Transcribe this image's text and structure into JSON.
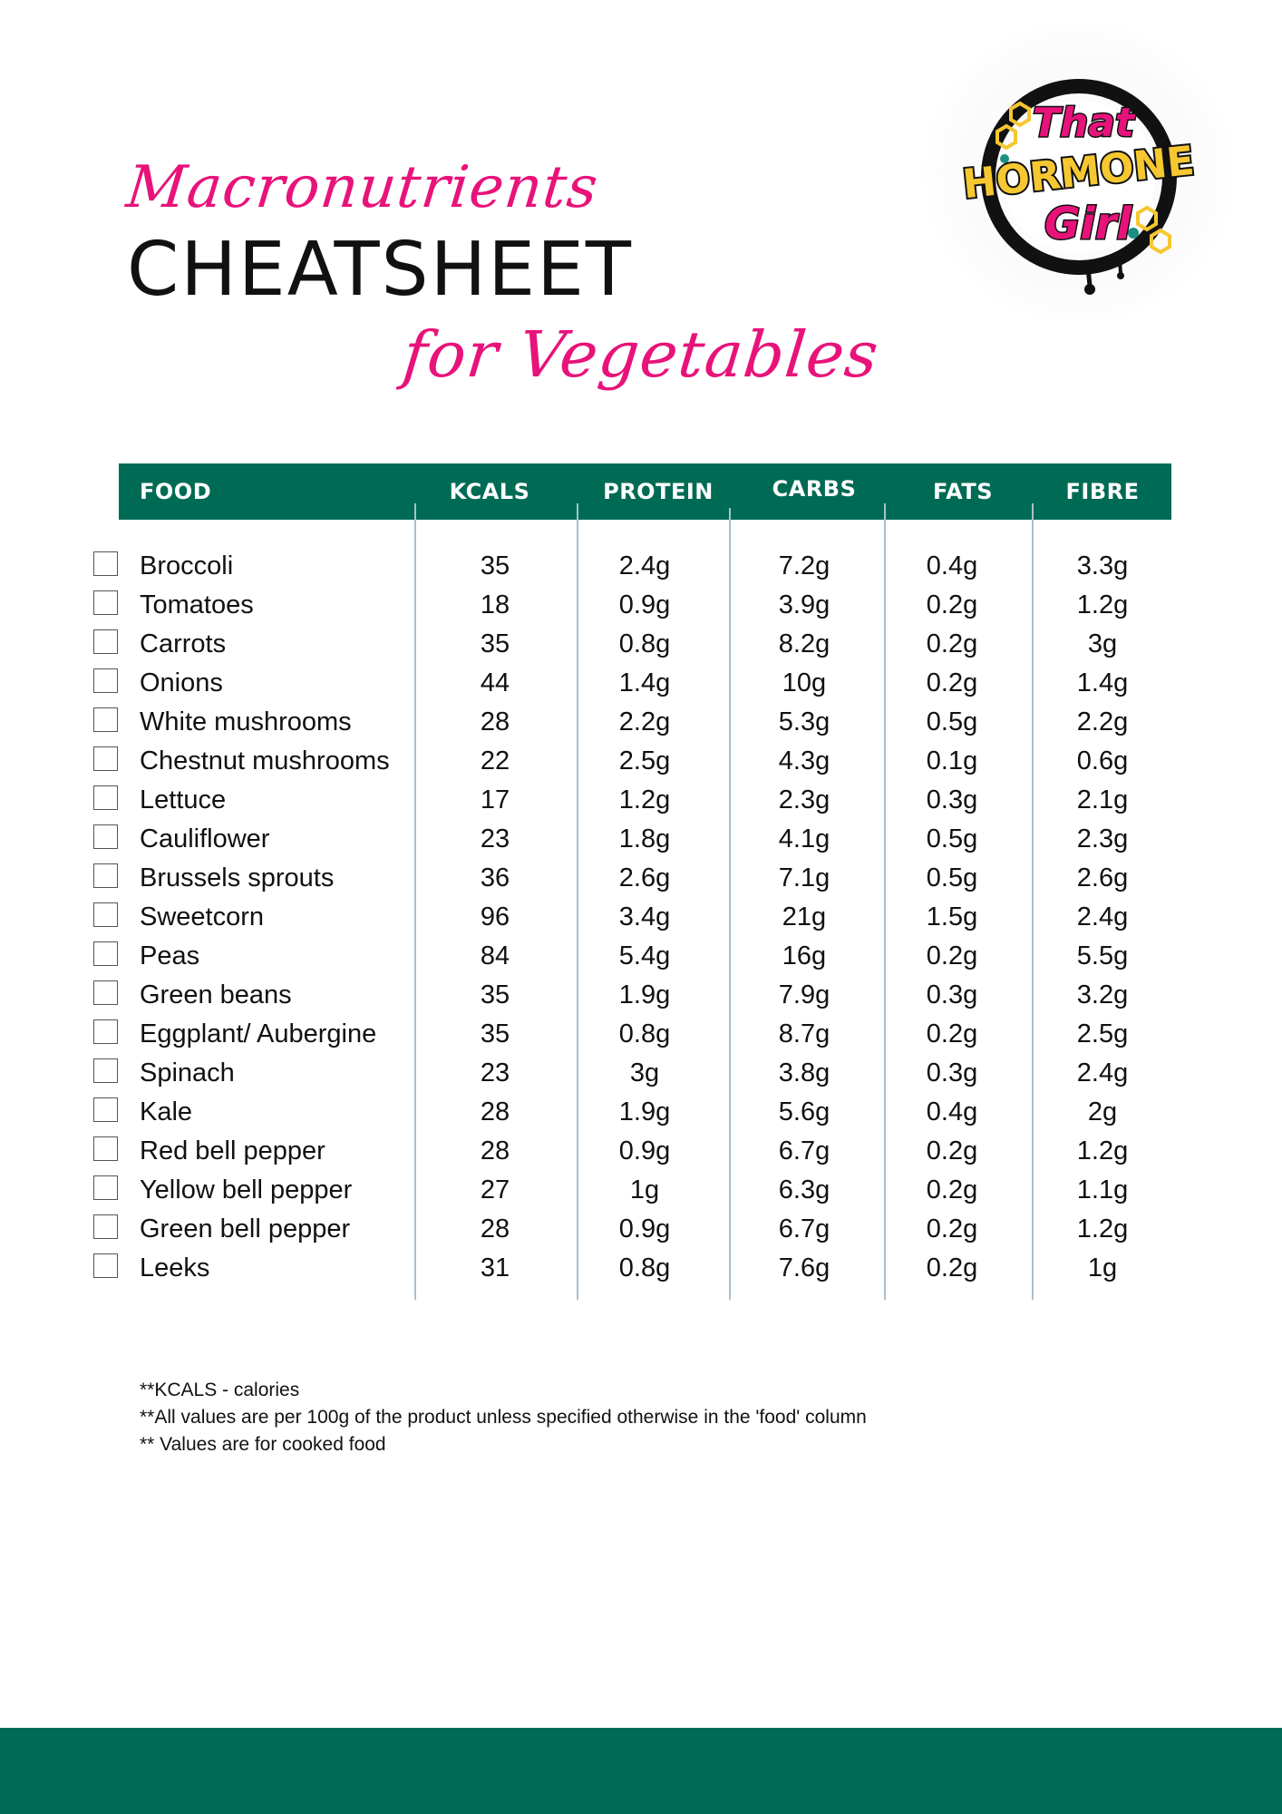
{
  "title": {
    "script_top": "Macronutrients",
    "main": "CHEATSHEET",
    "script_bottom": "for Vegetables"
  },
  "logo": {
    "text_line_1": "That",
    "text_line_2": "HORMONE",
    "text_line_3": "Girl",
    "colors": {
      "pink": "#e8137a",
      "yellow": "#f6c731",
      "ring": "#111111",
      "teal": "#1a8f84"
    }
  },
  "colors": {
    "accent_green": "#006b55",
    "script_pink": "#e8137a",
    "divider": "#a9bfcf"
  },
  "table": {
    "headers": {
      "food": "FOOD",
      "kcals": "KCALS",
      "protein": "PROTEIN",
      "carbs": "CARBS",
      "fats": "FATS",
      "fibre": "FIBRE"
    },
    "rows": [
      {
        "food": "Broccoli",
        "kcals": "35",
        "protein": "2.4g",
        "carbs": "7.2g",
        "fats": "0.4g",
        "fibre": "3.3g"
      },
      {
        "food": "Tomatoes",
        "kcals": "18",
        "protein": "0.9g",
        "carbs": "3.9g",
        "fats": "0.2g",
        "fibre": "1.2g"
      },
      {
        "food": "Carrots",
        "kcals": "35",
        "protein": "0.8g",
        "carbs": "8.2g",
        "fats": "0.2g",
        "fibre": "3g"
      },
      {
        "food": "Onions",
        "kcals": "44",
        "protein": "1.4g",
        "carbs": "10g",
        "fats": "0.2g",
        "fibre": "1.4g"
      },
      {
        "food": "White mushrooms",
        "kcals": "28",
        "protein": "2.2g",
        "carbs": "5.3g",
        "fats": "0.5g",
        "fibre": "2.2g"
      },
      {
        "food": "Chestnut mushrooms",
        "kcals": "22",
        "protein": "2.5g",
        "carbs": "4.3g",
        "fats": "0.1g",
        "fibre": "0.6g"
      },
      {
        "food": "Lettuce",
        "kcals": "17",
        "protein": "1.2g",
        "carbs": "2.3g",
        "fats": "0.3g",
        "fibre": "2.1g"
      },
      {
        "food": "Cauliflower",
        "kcals": "23",
        "protein": "1.8g",
        "carbs": "4.1g",
        "fats": "0.5g",
        "fibre": "2.3g"
      },
      {
        "food": "Brussels sprouts",
        "kcals": "36",
        "protein": "2.6g",
        "carbs": "7.1g",
        "fats": "0.5g",
        "fibre": "2.6g"
      },
      {
        "food": "Sweetcorn",
        "kcals": "96",
        "protein": "3.4g",
        "carbs": "21g",
        "fats": "1.5g",
        "fibre": "2.4g"
      },
      {
        "food": "Peas",
        "kcals": "84",
        "protein": "5.4g",
        "carbs": "16g",
        "fats": "0.2g",
        "fibre": "5.5g"
      },
      {
        "food": "Green beans",
        "kcals": "35",
        "protein": "1.9g",
        "carbs": "7.9g",
        "fats": "0.3g",
        "fibre": "3.2g"
      },
      {
        "food": "Eggplant/ Aubergine",
        "kcals": "35",
        "protein": "0.8g",
        "carbs": "8.7g",
        "fats": "0.2g",
        "fibre": "2.5g"
      },
      {
        "food": "Spinach",
        "kcals": "23",
        "protein": "3g",
        "carbs": "3.8g",
        "fats": "0.3g",
        "fibre": "2.4g"
      },
      {
        "food": "Kale",
        "kcals": "28",
        "protein": "1.9g",
        "carbs": "5.6g",
        "fats": "0.4g",
        "fibre": "2g"
      },
      {
        "food": "Red bell pepper",
        "kcals": "28",
        "protein": "0.9g",
        "carbs": "6.7g",
        "fats": "0.2g",
        "fibre": "1.2g"
      },
      {
        "food": "Yellow bell pepper",
        "kcals": "27",
        "protein": "1g",
        "carbs": "6.3g",
        "fats": "0.2g",
        "fibre": "1.1g"
      },
      {
        "food": "Green bell pepper",
        "kcals": "28",
        "protein": "0.9g",
        "carbs": "6.7g",
        "fats": "0.2g",
        "fibre": "1.2g"
      },
      {
        "food": "Leeks",
        "kcals": "31",
        "protein": "0.8g",
        "carbs": "7.6g",
        "fats": "0.2g",
        "fibre": "1g"
      }
    ]
  },
  "notes": [
    "**KCALS - calories",
    "**All values are per 100g of the product unless specified otherwise in the 'food' column",
    "** Values are for cooked food"
  ]
}
